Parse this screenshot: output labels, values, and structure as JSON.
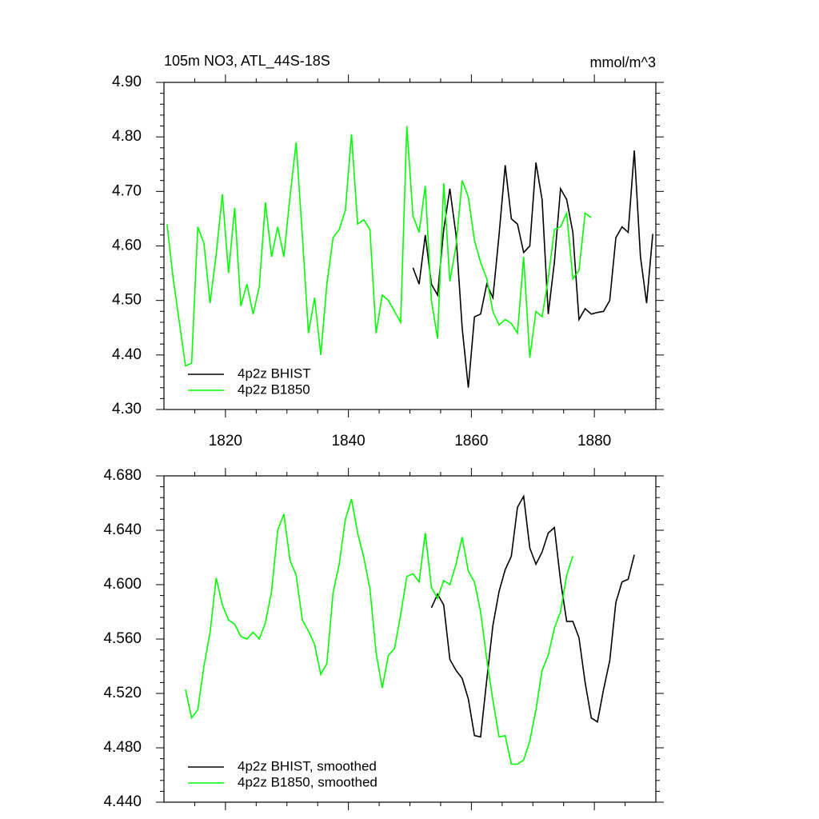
{
  "chart_data": [
    {
      "type": "line",
      "title": "105m NO3, ATL_44S-18S",
      "units": "mmol/m^3",
      "xlim": [
        1810,
        1890
      ],
      "xticks": [
        1820,
        1840,
        1860,
        1880
      ],
      "ylim": [
        4.3,
        4.9
      ],
      "yticks": [
        {
          "value": 4.3,
          "label": "4.30"
        },
        {
          "value": 4.4,
          "label": "4.40"
        },
        {
          "value": 4.5,
          "label": "4.50"
        },
        {
          "value": 4.6,
          "label": "4.60"
        },
        {
          "value": 4.7,
          "label": "4.70"
        },
        {
          "value": 4.8,
          "label": "4.80"
        },
        {
          "value": 4.9,
          "label": "4.90"
        }
      ],
      "legend": "lower left",
      "series": [
        {
          "name": "4p2z BHIST",
          "color": "#000000",
          "x": [
            1850.5,
            1851.5,
            1852.5,
            1853.5,
            1854.5,
            1855.5,
            1856.5,
            1857.5,
            1858.5,
            1859.5,
            1860.5,
            1861.5,
            1862.5,
            1863.5,
            1864.5,
            1865.5,
            1866.5,
            1867.5,
            1868.5,
            1869.5,
            1870.5,
            1871.5,
            1872.5,
            1873.5,
            1874.5,
            1875.5,
            1876.5,
            1877.5,
            1878.5,
            1879.5,
            1880.5,
            1881.5,
            1882.5,
            1883.5,
            1884.5,
            1885.5,
            1886.5,
            1887.5,
            1888.5,
            1889.5
          ],
          "values": [
            4.56,
            4.53,
            4.62,
            4.53,
            4.51,
            4.63,
            4.705,
            4.62,
            4.45,
            4.34,
            4.47,
            4.475,
            4.53,
            4.505,
            4.62,
            4.748,
            4.65,
            4.64,
            4.588,
            4.6,
            4.753,
            4.685,
            4.475,
            4.57,
            4.705,
            4.685,
            4.625,
            4.465,
            4.485,
            4.475,
            4.478,
            4.48,
            4.5,
            4.615,
            4.635,
            4.625,
            4.775,
            4.58,
            4.495,
            4.622
          ]
        },
        {
          "name": "4p2z B1850",
          "color": "#00ff00",
          "x": [
            1810.5,
            1811.5,
            1812.5,
            1813.5,
            1814.5,
            1815.5,
            1816.5,
            1817.5,
            1818.5,
            1819.5,
            1820.5,
            1821.5,
            1822.5,
            1823.5,
            1824.5,
            1825.5,
            1826.5,
            1827.5,
            1828.5,
            1829.5,
            1830.5,
            1831.5,
            1832.5,
            1833.5,
            1834.5,
            1835.5,
            1836.5,
            1837.5,
            1838.5,
            1839.5,
            1840.5,
            1841.5,
            1842.5,
            1843.5,
            1844.5,
            1845.5,
            1846.5,
            1847.5,
            1848.5,
            1849.5,
            1850.5,
            1851.5,
            1852.5,
            1853.5,
            1854.5,
            1855.5,
            1856.5,
            1857.5,
            1858.5,
            1859.5,
            1860.5,
            1861.5,
            1862.5,
            1863.5,
            1864.5,
            1865.5,
            1866.5,
            1867.5,
            1868.5,
            1869.5,
            1870.5,
            1871.5,
            1872.5,
            1873.5,
            1874.5,
            1875.5,
            1876.5,
            1877.5,
            1878.5,
            1879.5
          ],
          "values": [
            4.64,
            4.54,
            4.46,
            4.38,
            4.385,
            4.635,
            4.605,
            4.495,
            4.585,
            4.695,
            4.55,
            4.67,
            4.49,
            4.53,
            4.475,
            4.525,
            4.68,
            4.58,
            4.635,
            4.58,
            4.69,
            4.79,
            4.62,
            4.44,
            4.505,
            4.4,
            4.53,
            4.615,
            4.63,
            4.665,
            4.805,
            4.64,
            4.648,
            4.63,
            4.44,
            4.51,
            4.5,
            4.48,
            4.46,
            4.82,
            4.655,
            4.625,
            4.71,
            4.5,
            4.43,
            4.715,
            4.535,
            4.6,
            4.72,
            4.69,
            4.61,
            4.57,
            4.54,
            4.48,
            4.455,
            4.465,
            4.458,
            4.44,
            4.58,
            4.395,
            4.48,
            4.47,
            4.54,
            4.63,
            4.635,
            4.66,
            4.54,
            4.555,
            4.66,
            4.652
          ]
        }
      ]
    },
    {
      "type": "line",
      "xlim": [
        1810,
        1890
      ],
      "xticks": [
        1820,
        1840,
        1860,
        1880
      ],
      "ylim": [
        4.44,
        4.68
      ],
      "yticks": [
        {
          "value": 4.44,
          "label": "4.440"
        },
        {
          "value": 4.48,
          "label": "4.480"
        },
        {
          "value": 4.52,
          "label": "4.520"
        },
        {
          "value": 4.56,
          "label": "4.560"
        },
        {
          "value": 4.6,
          "label": "4.600"
        },
        {
          "value": 4.64,
          "label": "4.640"
        },
        {
          "value": 4.68,
          "label": "4.680"
        }
      ],
      "legend": "lower left",
      "series": [
        {
          "name": "4p2z BHIST, smoothed",
          "color": "#000000",
          "x": [
            1853.5,
            1854.5,
            1855.5,
            1856.5,
            1857.5,
            1858.5,
            1859.5,
            1860.5,
            1861.5,
            1862.5,
            1863.5,
            1864.5,
            1865.5,
            1866.5,
            1867.5,
            1868.5,
            1869.5,
            1870.5,
            1871.5,
            1872.5,
            1873.5,
            1874.5,
            1875.5,
            1876.5,
            1877.5,
            1878.5,
            1879.5,
            1880.5,
            1881.5,
            1882.5,
            1883.5,
            1884.5,
            1885.5,
            1886.5
          ],
          "values": [
            4.583,
            4.593,
            4.585,
            4.545,
            4.537,
            4.531,
            4.516,
            4.489,
            4.488,
            4.53,
            4.57,
            4.595,
            4.611,
            4.621,
            4.657,
            4.665,
            4.627,
            4.615,
            4.624,
            4.638,
            4.642,
            4.603,
            4.573,
            4.573,
            4.561,
            4.528,
            4.502,
            4.499,
            4.523,
            4.544,
            4.587,
            4.602,
            4.604,
            4.622
          ]
        },
        {
          "name": "4p2z B1850, smoothed",
          "color": "#00ff00",
          "x": [
            1813.5,
            1814.5,
            1815.5,
            1816.5,
            1817.5,
            1818.5,
            1819.5,
            1820.5,
            1821.5,
            1822.5,
            1823.5,
            1824.5,
            1825.5,
            1826.5,
            1827.5,
            1828.5,
            1829.5,
            1830.5,
            1831.5,
            1832.5,
            1833.5,
            1834.5,
            1835.5,
            1836.5,
            1837.5,
            1838.5,
            1839.5,
            1840.5,
            1841.5,
            1842.5,
            1843.5,
            1844.5,
            1845.5,
            1846.5,
            1847.5,
            1848.5,
            1849.5,
            1850.5,
            1851.5,
            1852.5,
            1853.5,
            1854.5,
            1855.5,
            1856.5,
            1857.5,
            1858.5,
            1859.5,
            1860.5,
            1861.5,
            1862.5,
            1863.5,
            1864.5,
            1865.5,
            1866.5,
            1867.5,
            1868.5,
            1869.5,
            1870.5,
            1871.5,
            1872.5,
            1873.5,
            1874.5,
            1875.5,
            1876.5
          ],
          "values": [
            4.523,
            4.502,
            4.508,
            4.54,
            4.565,
            4.605,
            4.585,
            4.574,
            4.571,
            4.562,
            4.56,
            4.565,
            4.56,
            4.572,
            4.595,
            4.64,
            4.652,
            4.618,
            4.607,
            4.574,
            4.566,
            4.556,
            4.534,
            4.542,
            4.594,
            4.615,
            4.648,
            4.663,
            4.638,
            4.62,
            4.597,
            4.55,
            4.524,
            4.548,
            4.553,
            4.578,
            4.606,
            4.608,
            4.602,
            4.638,
            4.598,
            4.59,
            4.603,
            4.6,
            4.615,
            4.635,
            4.61,
            4.602,
            4.58,
            4.545,
            4.515,
            4.488,
            4.489,
            4.468,
            4.468,
            4.471,
            4.485,
            4.508,
            4.537,
            4.548,
            4.568,
            4.58,
            4.607,
            4.621
          ]
        }
      ]
    }
  ]
}
